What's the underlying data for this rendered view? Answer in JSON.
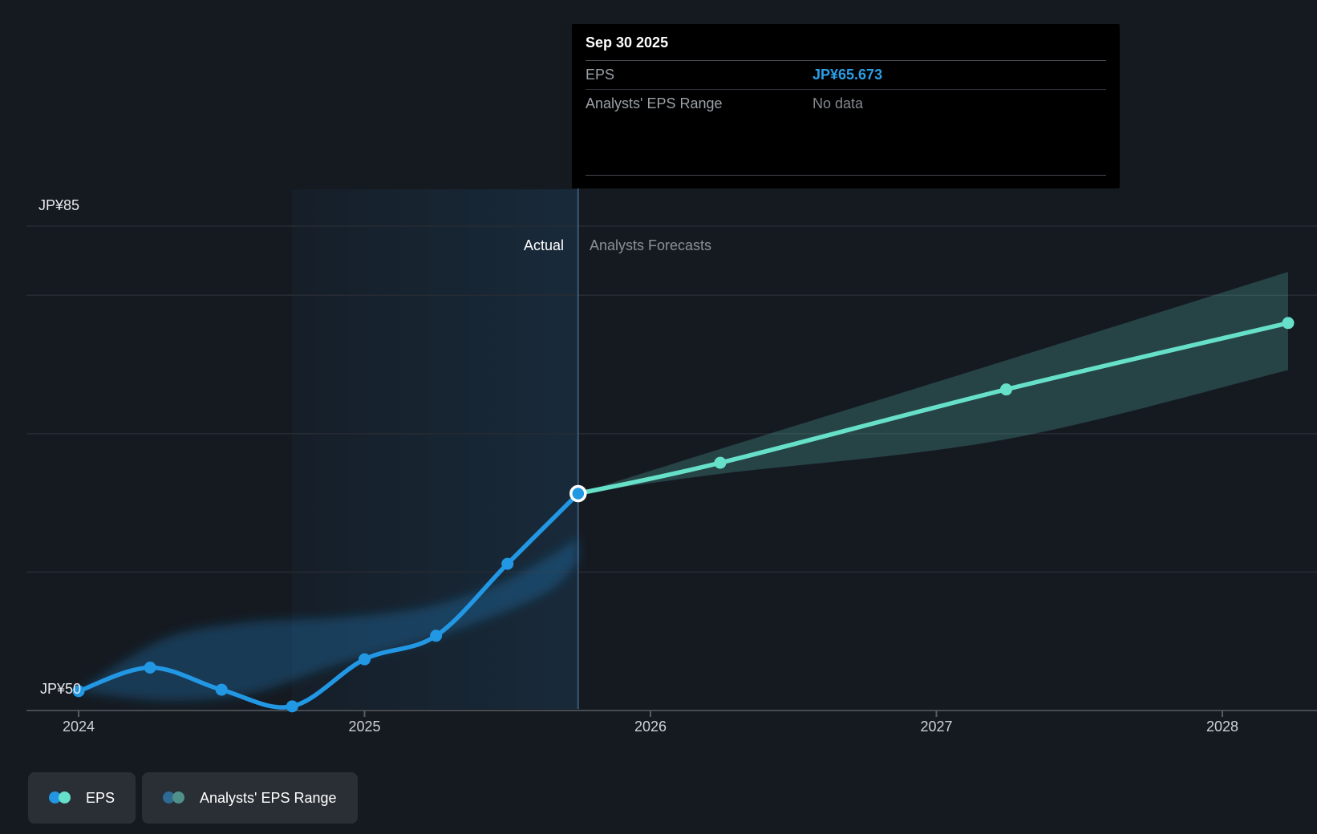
{
  "colors": {
    "background": "#151a21",
    "gridline": "#262b33",
    "axis_line": "#585c63",
    "eps_actual": "#2297e4",
    "eps_forecast": "#66e0c9",
    "actual_range_fill": "rgba(34,140,220,0.28)",
    "forecast_range_fill": "rgba(102,224,201,0.21)",
    "divider_line": "rgba(90,140,185,0.5)",
    "hover_ring": "#ffffff",
    "tooltip_value_blue": "#2b9fe8"
  },
  "tooltip": {
    "date": "Sep 30 2025",
    "rows": [
      {
        "label": "EPS",
        "value": "JP¥65.673"
      },
      {
        "label": "Analysts' EPS Range",
        "value": "No data"
      }
    ]
  },
  "region_labels": {
    "actual": "Actual",
    "forecast": "Analysts Forecasts"
  },
  "y_axis": {
    "top_label": "JP¥85",
    "bottom_label": "JP¥50"
  },
  "legend": [
    {
      "label": "EPS",
      "dots": [
        "#2296e3",
        "#66e0c9"
      ]
    },
    {
      "label": "Analysts' EPS Range",
      "dots": [
        "#2e6b94",
        "#4f918a"
      ]
    }
  ],
  "chart_data": {
    "type": "line",
    "title": "EPS actual and analysts forecast",
    "currency_prefix": "JP¥",
    "ylim": [
      50,
      85
    ],
    "gridline_values": [
      85,
      80,
      70,
      60
    ],
    "axis_value": 50,
    "x_ticks": [
      2024,
      2025,
      2026,
      2027,
      2028
    ],
    "x_tick_labels": [
      "2024",
      "2025",
      "2026",
      "2027",
      "2028"
    ],
    "divider_x": 2025.747,
    "highlight_span": [
      2024.747,
      2025.747
    ],
    "series": [
      {
        "name": "EPS (actual)",
        "color": "#2297e4",
        "dates": [
          "Dec 31 2023",
          "Mar 31 2024",
          "Jun 30 2024",
          "Sep 30 2024",
          "Dec 31 2024",
          "Mar 31 2025",
          "Jun 30 2025",
          "Sep 30 2025"
        ],
        "x": [
          2024.0,
          2024.25,
          2024.5,
          2024.747,
          2025.0,
          2025.25,
          2025.5,
          2025.747
        ],
        "values": [
          51.4,
          53.1,
          51.5,
          50.3,
          53.7,
          55.4,
          60.6,
          65.673
        ]
      },
      {
        "name": "EPS (analysts forecast)",
        "color": "#66e0c9",
        "dates": [
          "Sep 30 2025",
          "Mar 31 2026",
          "Mar 31 2027",
          "Mar 31 2028"
        ],
        "x": [
          2025.747,
          2026.244,
          2027.244,
          2028.23
        ],
        "values": [
          65.673,
          67.9,
          73.2,
          78.0
        ]
      }
    ],
    "ranges": [
      {
        "name": "actual-range",
        "x": [
          2024.0,
          2024.3,
          2024.6,
          2024.9,
          2025.2,
          2025.45,
          2025.65,
          2025.747
        ],
        "high": [
          51.4,
          55.2,
          56.4,
          56.7,
          57.4,
          59.0,
          61.2,
          62.5
        ],
        "low": [
          51.4,
          50.7,
          51.2,
          53.3,
          55.0,
          56.8,
          58.7,
          60.8
        ]
      },
      {
        "name": "analysts-eps-range-forecast",
        "x": [
          2025.747,
          2026.244,
          2027.244,
          2028.23
        ],
        "high": [
          65.673,
          68.9,
          75.3,
          81.7
        ],
        "low": [
          65.673,
          67.1,
          69.6,
          74.6
        ]
      }
    ],
    "hover_point": {
      "date": "Sep 30 2025",
      "x": 2025.747,
      "value": 65.673
    }
  }
}
